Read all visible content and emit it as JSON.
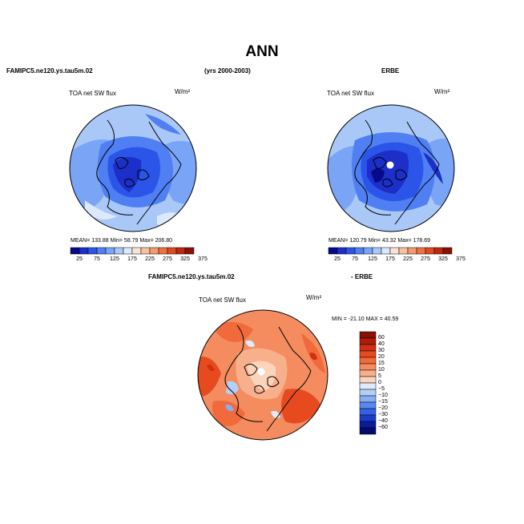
{
  "page": {
    "title": "ANN",
    "left_header": "FAMIPC5.ne120.ys.tau5m.02",
    "years": "(yrs 2000-2003)",
    "right_header": "ERBE",
    "diff_header_left": "FAMIPC5.ne120.ys.tau5m.02",
    "diff_header_right": "- ERBE"
  },
  "panels": {
    "model": {
      "variable": "TOA net SW flux",
      "units": "W/m²",
      "stats": "MEAN= 133.88   Min=  58.79   Max= 206.80"
    },
    "obs": {
      "variable": "TOA net SW flux",
      "units": "W/m²",
      "stats": "MEAN= 120.79   Min=  43.32   Max= 178.69"
    },
    "diff": {
      "variable": "TOA net SW flux",
      "units": "W/m²",
      "stats": "MIN = -21.10  MAX =  40.59"
    }
  },
  "colorbar_main": {
    "ticks": [
      "25",
      "75",
      "125",
      "175",
      "225",
      "275",
      "325",
      "375"
    ],
    "colors": [
      "#08088a",
      "#1c2fc8",
      "#2b55e8",
      "#4f7ff2",
      "#7aa4f6",
      "#a9c8f8",
      "#dbe9fb",
      "#fbe2d2",
      "#f8c0a0",
      "#f49a70",
      "#ef7045",
      "#e04a22",
      "#c0280e",
      "#8a1004"
    ]
  },
  "colorbar_diff": {
    "ticks": [
      "60",
      "40",
      "30",
      "20",
      "15",
      "10",
      "5",
      "0",
      "−5",
      "−10",
      "−15",
      "−20",
      "−30",
      "−40",
      "−60"
    ],
    "colors": [
      "#8a1004",
      "#b01c08",
      "#d0300f",
      "#e84a20",
      "#f06a3c",
      "#f48c60",
      "#f8b08c",
      "#fbd4bc",
      "#ddebfa",
      "#b3d0f7",
      "#86aef3",
      "#5a88ee",
      "#3460e6",
      "#1b3cc8",
      "#0a1c96",
      "#060a70"
    ]
  }
}
